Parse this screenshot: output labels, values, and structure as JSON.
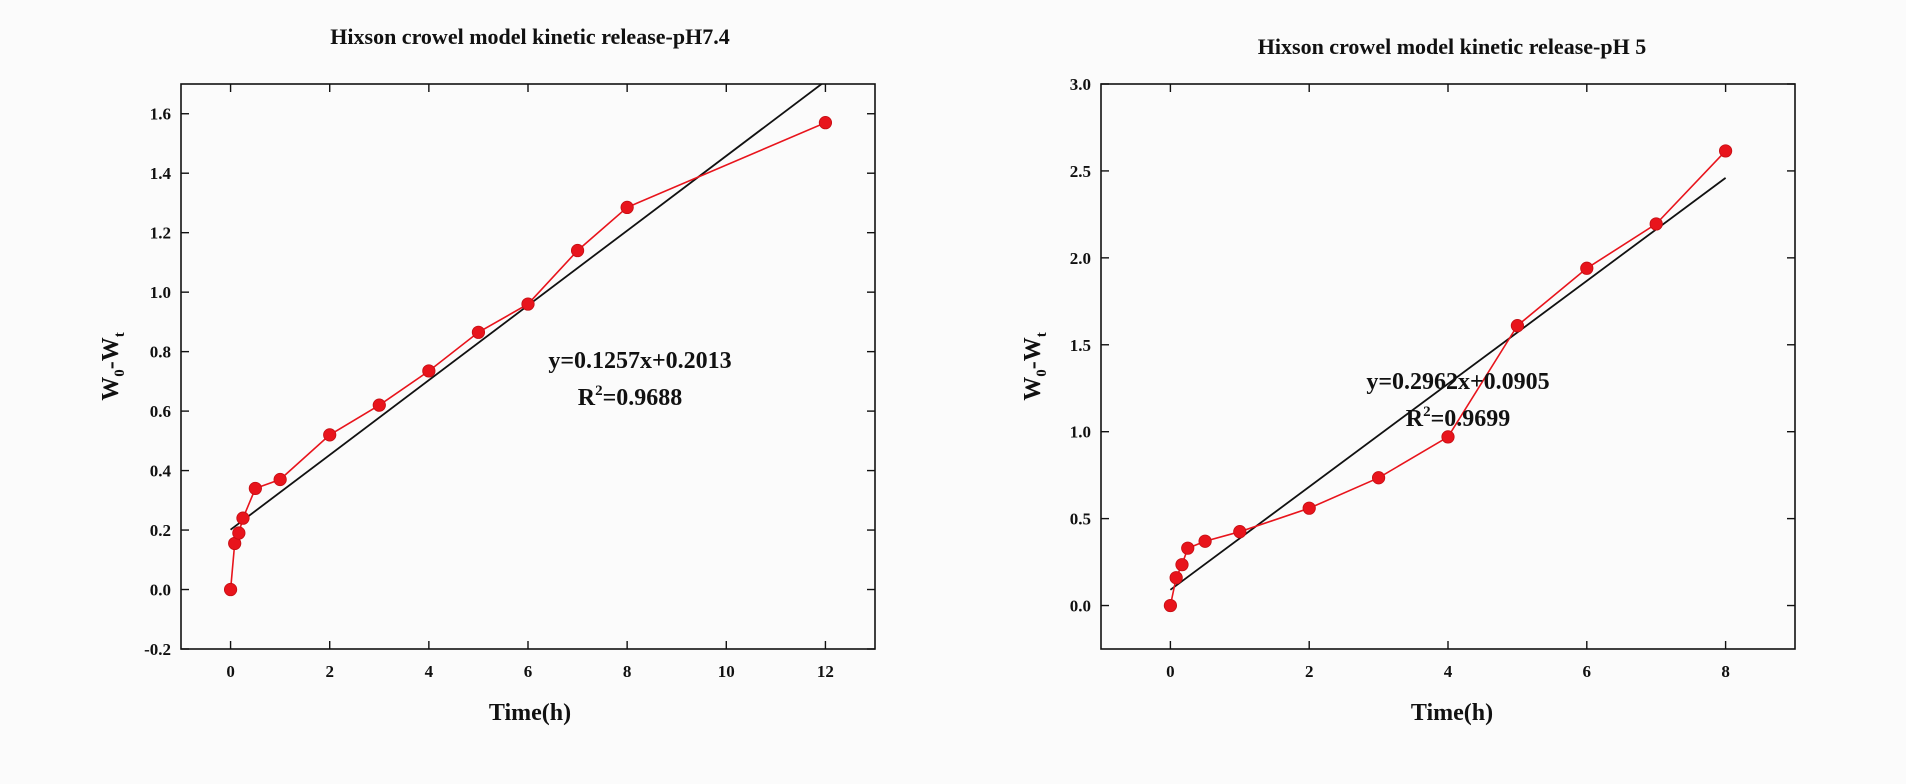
{
  "chart_data": [
    {
      "type": "line",
      "title": "Hixson crowel model  kinetic release-pH7.4",
      "xlabel": "Time(h)",
      "ylabel_main": "W",
      "ylabel_sub1": "0",
      "ylabel_mid": "-W",
      "ylabel_sub2": "t",
      "xlim": [
        -1,
        13
      ],
      "ylim": [
        -0.2,
        1.7
      ],
      "x_ticks": [
        0,
        2,
        4,
        6,
        8,
        10,
        12
      ],
      "x_tick_labels": [
        "0",
        "2",
        "4",
        "6",
        "8",
        "10",
        "12"
      ],
      "y_ticks": [
        -0.2,
        0.0,
        0.2,
        0.4,
        0.6,
        0.8,
        1.0,
        1.2,
        1.4,
        1.6
      ],
      "y_tick_labels": [
        "-0.2",
        "0.0",
        "0.2",
        "0.4",
        "0.6",
        "0.8",
        "1.0",
        "1.2",
        "1.4",
        "1.6"
      ],
      "series": [
        {
          "color": "#e8141c",
          "x": [
            0,
            0.083,
            0.167,
            0.25,
            0.5,
            1,
            2,
            3,
            4,
            5,
            6,
            7,
            8,
            12
          ],
          "y": [
            0.0,
            0.155,
            0.19,
            0.24,
            0.34,
            0.37,
            0.52,
            0.62,
            0.735,
            0.865,
            0.96,
            1.14,
            1.285,
            1.57
          ]
        }
      ],
      "fit": {
        "slope": 0.1257,
        "intercept": 0.2013,
        "x_range": [
          0,
          12.1
        ],
        "color": "#111111"
      },
      "equation": "y=0.1257x+0.2013",
      "r2_main": "R",
      "r2_sup": "2",
      "r2_value": "=0.9688"
    },
    {
      "type": "line",
      "title": "Hixson crowel model  kinetic release-pH 5",
      "xlabel": "Time(h)",
      "ylabel_main": "W",
      "ylabel_sub1": "0",
      "ylabel_mid": "-W",
      "ylabel_sub2": "t",
      "xlim": [
        -1,
        9
      ],
      "ylim": [
        -0.25,
        3.0
      ],
      "x_ticks": [
        0,
        2,
        4,
        6,
        8
      ],
      "x_tick_labels": [
        "0",
        "2",
        "4",
        "6",
        "8"
      ],
      "y_ticks": [
        0.0,
        0.5,
        1.0,
        1.5,
        2.0,
        2.5,
        3.0
      ],
      "y_tick_labels": [
        "0.0",
        "0.5",
        "1.0",
        "1.5",
        "2.0",
        "2.5",
        "3.0"
      ],
      "series": [
        {
          "color": "#e8141c",
          "x": [
            0,
            0.083,
            0.167,
            0.25,
            0.5,
            1,
            2,
            3,
            4,
            5,
            6,
            7,
            8
          ],
          "y": [
            0.0,
            0.16,
            0.235,
            0.33,
            0.37,
            0.425,
            0.56,
            0.735,
            0.97,
            1.61,
            1.94,
            2.195,
            2.615
          ]
        }
      ],
      "fit": {
        "slope": 0.2962,
        "intercept": 0.0905,
        "x_range": [
          0,
          8
        ],
        "color": "#111111"
      },
      "equation": "y=0.2962x+0.0905",
      "r2_main": "R",
      "r2_sup": "2",
      "r2_value": "=0.9699"
    }
  ]
}
